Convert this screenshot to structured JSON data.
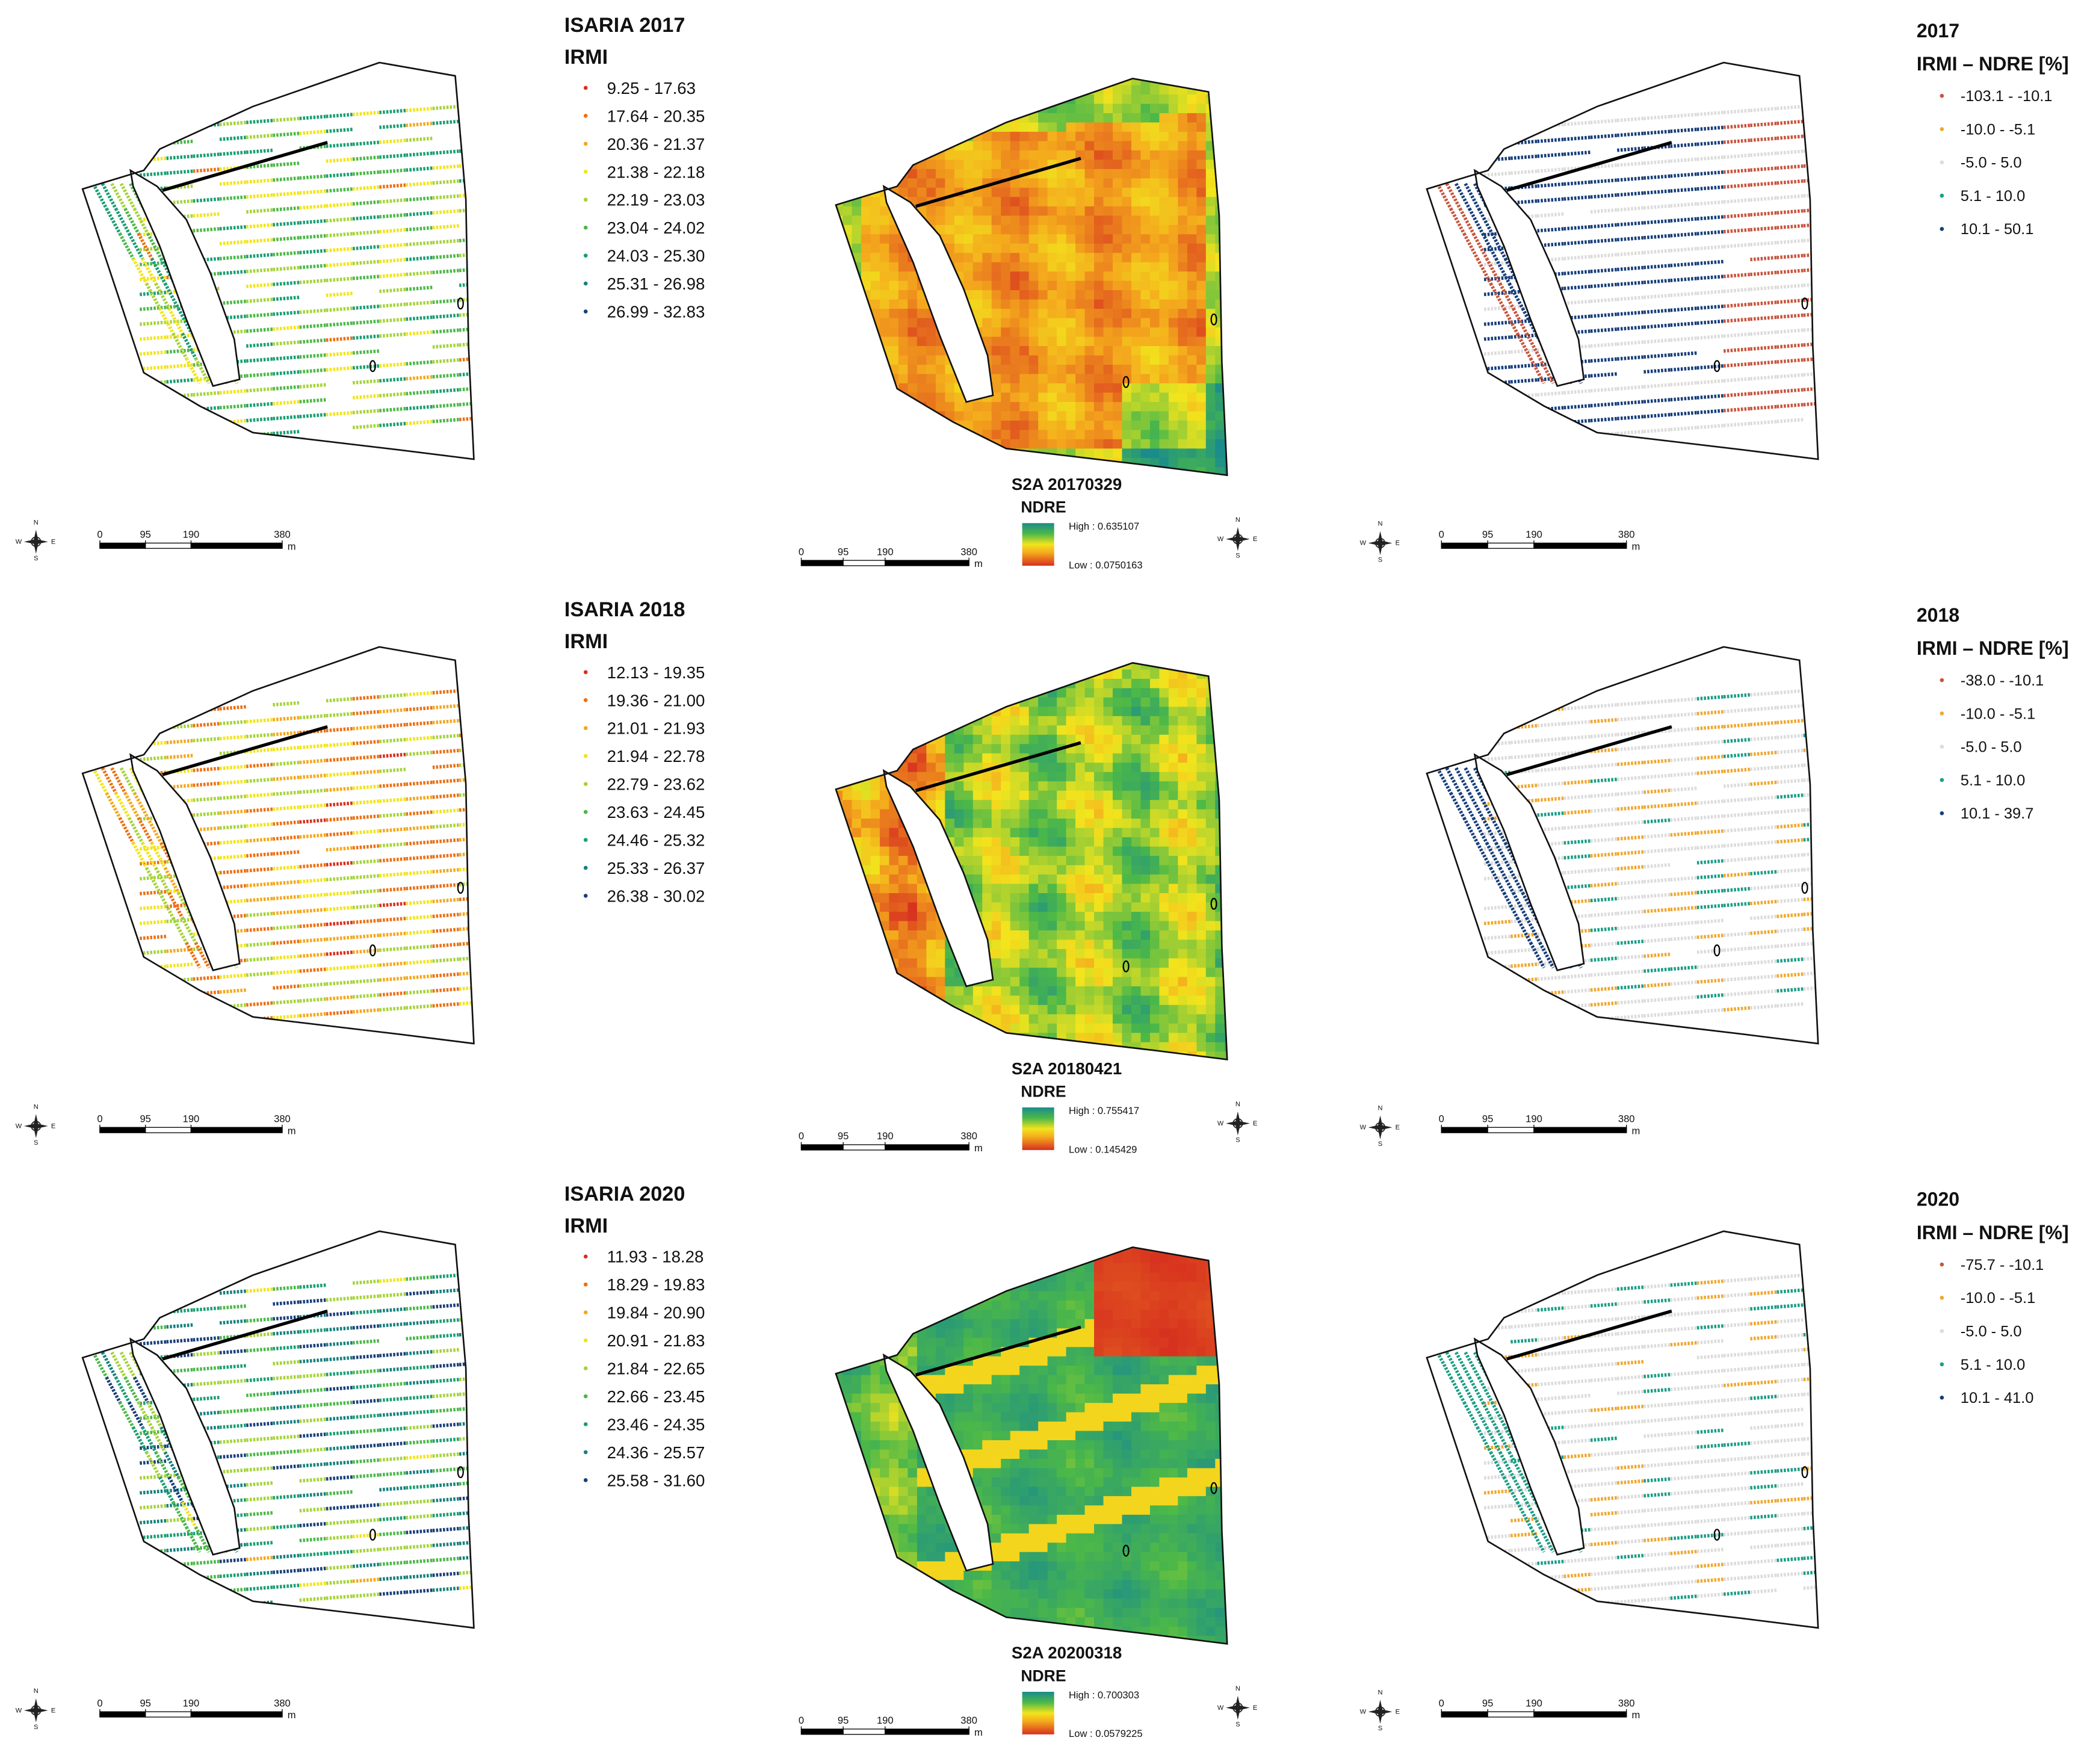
{
  "panels": [
    {
      "irmi": {
        "title": "ISARIA 2017",
        "subtitle": "IRMI",
        "classes": [
          "9.25 - 17.63",
          "17.64 - 20.35",
          "20.36 - 21.37",
          "21.38 - 22.18",
          "22.19 - 23.03",
          "23.04 - 24.02",
          "24.03 - 25.30",
          "25.31 - 26.98",
          "26.99 - 32.83"
        ]
      },
      "ndre": {
        "title": "S2A 20170329",
        "subtitle": "NDRE",
        "high": "High : 0.635107",
        "low": "Low : 0.0750163"
      },
      "diff": {
        "title": "2017",
        "subtitle": "IRMI – NDRE [%]",
        "classes": [
          "-103.1 - -10.1",
          "-10.0 - -5.1",
          "-5.0 - 5.0",
          "5.1 - 10.0",
          "10.1 - 50.1"
        ]
      }
    },
    {
      "irmi": {
        "title": "ISARIA 2018",
        "subtitle": "IRMI",
        "classes": [
          "12.13 - 19.35",
          "19.36 - 21.00",
          "21.01 - 21.93",
          "21.94 - 22.78",
          "22.79 - 23.62",
          "23.63 - 24.45",
          "24.46 - 25.32",
          "25.33 - 26.37",
          "26.38 - 30.02"
        ]
      },
      "ndre": {
        "title": "S2A 20180421",
        "subtitle": "NDRE",
        "high": "High : 0.755417",
        "low": "Low : 0.145429"
      },
      "diff": {
        "title": "2018",
        "subtitle": "IRMI – NDRE [%]",
        "classes": [
          "-38.0 - -10.1",
          "-10.0 - -5.1",
          "-5.0 - 5.0",
          "5.1 - 10.0",
          "10.1 - 39.7"
        ]
      }
    },
    {
      "irmi": {
        "title": "ISARIA 2020",
        "subtitle": "IRMI",
        "classes": [
          "11.93 - 18.28",
          "18.29 - 19.83",
          "19.84 - 20.90",
          "20.91 - 21.83",
          "21.84 - 22.65",
          "22.66 - 23.45",
          "23.46 - 24.35",
          "24.36 - 25.57",
          "25.58 - 31.60"
        ]
      },
      "ndre": {
        "title": "S2A 20200318",
        "subtitle": "NDRE",
        "high": "High : 0.700303",
        "low": "Low : 0.0579225"
      },
      "diff": {
        "title": "2020",
        "subtitle": "IRMI – NDRE [%]",
        "classes": [
          "-75.7 - -10.1",
          "-10.0 - -5.1",
          "-5.0 - 5.0",
          "5.1 - 10.0",
          "10.1 - 41.0"
        ]
      }
    }
  ],
  "irmi_colors": [
    "#d7301f",
    "#ec7014",
    "#f4a81d",
    "#f2e41d",
    "#a6d33a",
    "#4cb848",
    "#1a9e74",
    "#17807e",
    "#1b3f7a"
  ],
  "diff_colors": [
    "#c8553d",
    "#f0a830",
    "#dcdcdc",
    "#1b9e86",
    "#163e7a"
  ],
  "scale_bar": {
    "ticks": [
      0,
      95,
      190,
      380
    ],
    "unit": "m"
  },
  "compass": {
    "n": "N",
    "s": "S",
    "e": "E",
    "w": "W"
  }
}
